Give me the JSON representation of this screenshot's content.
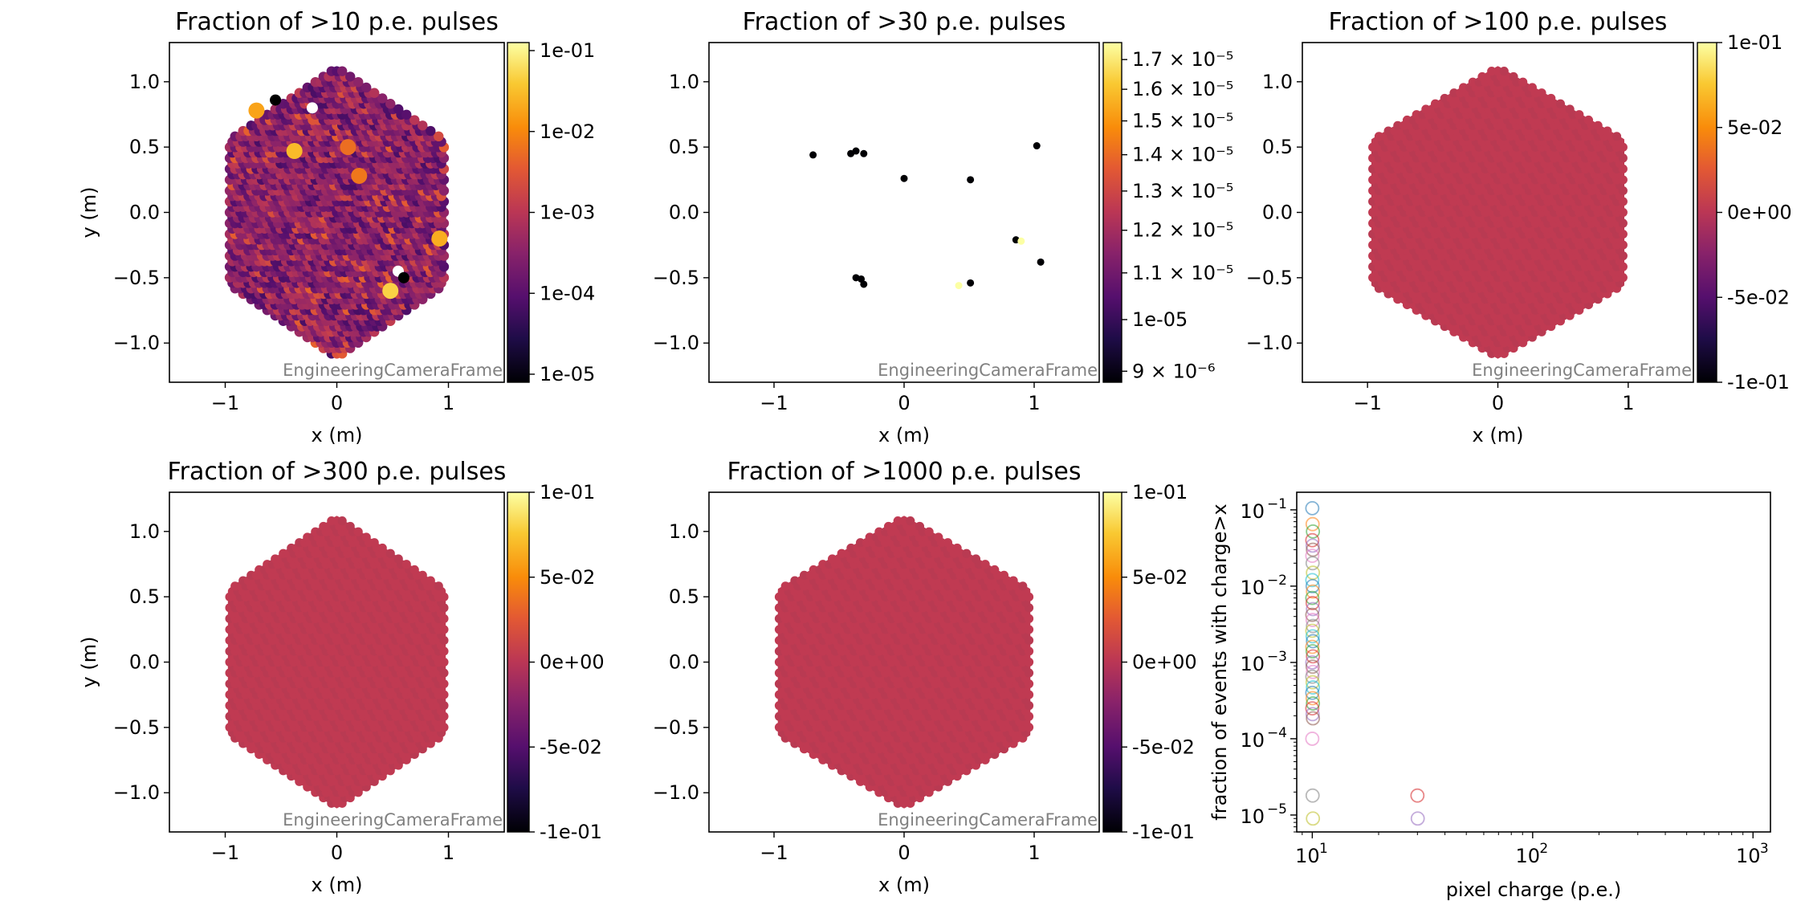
{
  "camera_panels": [
    {
      "id": "p10",
      "title": "Fraction of >10 p.e. pulses",
      "xlabel": "x  (m)",
      "ylabel": "y  (m)",
      "xticks": [
        "−1",
        "0",
        "1"
      ],
      "yticks": [
        "1.0",
        "0.5",
        "0.0",
        "−0.5",
        "−1.0"
      ],
      "watermark": "EngineeringCameraFrame",
      "colorbar": {
        "scale": "log",
        "ticks": [
          "1e-01",
          "1e-02",
          "1e-03",
          "1e-04",
          "1e-05"
        ]
      },
      "mode": "random"
    },
    {
      "id": "p30",
      "title": "Fraction of >30 p.e. pulses",
      "xlabel": "x  (m)",
      "ylabel": "",
      "xticks": [
        "−1",
        "0",
        "1"
      ],
      "yticks": [
        "1.0",
        "0.5",
        "0.0",
        "−0.5",
        "−1.0"
      ],
      "watermark": "EngineeringCameraFrame",
      "colorbar": {
        "scale": "log",
        "ticks": [
          "1.7 × 10⁻⁵",
          "1.6 × 10⁻⁵",
          "1.5 × 10⁻⁵",
          "1.4 × 10⁻⁵",
          "1.3 × 10⁻⁵",
          "1.2 × 10⁻⁵",
          "1.1 × 10⁻⁵",
          "1e-05",
          "9 × 10⁻⁶"
        ]
      },
      "mode": "sparse"
    },
    {
      "id": "p100",
      "title": "Fraction of >100 p.e. pulses",
      "xlabel": "x  (m)",
      "ylabel": "",
      "xticks": [
        "−1",
        "0",
        "1"
      ],
      "yticks": [
        "1.0",
        "0.5",
        "0.0",
        "−0.5",
        "−1.0"
      ],
      "watermark": "EngineeringCameraFrame",
      "colorbar": {
        "scale": "linear",
        "ticks": [
          "1e-01",
          "5e-02",
          "0e+00",
          "-5e-02",
          "-1e-01"
        ]
      },
      "mode": "uniform"
    },
    {
      "id": "p300",
      "title": "Fraction of >300 p.e. pulses",
      "xlabel": "x  (m)",
      "ylabel": "y  (m)",
      "xticks": [
        "−1",
        "0",
        "1"
      ],
      "yticks": [
        "1.0",
        "0.5",
        "0.0",
        "−0.5",
        "−1.0"
      ],
      "watermark": "EngineeringCameraFrame",
      "colorbar": {
        "scale": "linear",
        "ticks": [
          "1e-01",
          "5e-02",
          "0e+00",
          "-5e-02",
          "-1e-01"
        ]
      },
      "mode": "uniform"
    },
    {
      "id": "p1000",
      "title": "Fraction of >1000 p.e. pulses",
      "xlabel": "x  (m)",
      "ylabel": "",
      "xticks": [
        "−1",
        "0",
        "1"
      ],
      "yticks": [
        "1.0",
        "0.5",
        "0.0",
        "−0.5",
        "−1.0"
      ],
      "watermark": "EngineeringCameraFrame",
      "colorbar": {
        "scale": "linear",
        "ticks": [
          "1e-01",
          "5e-02",
          "0e+00",
          "-5e-02",
          "-1e-01"
        ]
      },
      "mode": "uniform"
    }
  ],
  "chart_data": [
    {
      "type": "heatmap",
      "title": "Fraction of >10 p.e. pulses",
      "xlabel": "x  (m)",
      "ylabel": "y  (m)",
      "xlim": [
        -1.5,
        1.5
      ],
      "ylim": [
        -1.3,
        1.3
      ],
      "color_scale": "log",
      "color_range": [
        1e-05,
        0.1
      ],
      "colormap": "inferno"
    },
    {
      "type": "scatter",
      "title": "Fraction of >30 p.e. pulses",
      "xlabel": "x  (m)",
      "xlim": [
        -1.5,
        1.5
      ],
      "ylim": [
        -1.3,
        1.3
      ],
      "color_scale": "log",
      "color_range": [
        9e-06,
        1.75e-05
      ],
      "colormap": "inferno",
      "points": [
        {
          "x": -0.7,
          "y": 0.44,
          "v": 9e-06
        },
        {
          "x": -0.41,
          "y": 0.45,
          "v": 9e-06
        },
        {
          "x": -0.37,
          "y": 0.47,
          "v": 9e-06
        },
        {
          "x": -0.31,
          "y": 0.45,
          "v": 9e-06
        },
        {
          "x": 0.0,
          "y": 0.26,
          "v": 9e-06
        },
        {
          "x": 0.51,
          "y": 0.25,
          "v": 9e-06
        },
        {
          "x": 1.02,
          "y": 0.51,
          "v": 9e-06
        },
        {
          "x": 0.86,
          "y": -0.21,
          "v": 9e-06
        },
        {
          "x": 0.9,
          "y": -0.22,
          "v": 1.75e-05
        },
        {
          "x": 1.05,
          "y": -0.38,
          "v": 9e-06
        },
        {
          "x": -0.37,
          "y": -0.5,
          "v": 9e-06
        },
        {
          "x": -0.33,
          "y": -0.51,
          "v": 9e-06
        },
        {
          "x": -0.31,
          "y": -0.55,
          "v": 9e-06
        },
        {
          "x": 0.42,
          "y": -0.56,
          "v": 1.75e-05
        },
        {
          "x": 0.51,
          "y": -0.54,
          "v": 9e-06
        }
      ]
    },
    {
      "type": "heatmap",
      "title": "Fraction of >100 p.e. pulses",
      "xlabel": "x  (m)",
      "xlim": [
        -1.5,
        1.5
      ],
      "ylim": [
        -1.3,
        1.3
      ],
      "color_scale": "linear",
      "color_range": [
        -0.1,
        0.1
      ],
      "uniform_value": 0.0
    },
    {
      "type": "heatmap",
      "title": "Fraction of >300 p.e. pulses",
      "xlabel": "x  (m)",
      "ylabel": "y  (m)",
      "xlim": [
        -1.5,
        1.5
      ],
      "ylim": [
        -1.3,
        1.3
      ],
      "color_scale": "linear",
      "color_range": [
        -0.1,
        0.1
      ],
      "uniform_value": 0.0
    },
    {
      "type": "heatmap",
      "title": "Fraction of >1000 p.e. pulses",
      "xlabel": "x  (m)",
      "xlim": [
        -1.5,
        1.5
      ],
      "ylim": [
        -1.3,
        1.3
      ],
      "color_scale": "linear",
      "color_range": [
        -0.1,
        0.1
      ],
      "uniform_value": 0.0
    },
    {
      "type": "scatter",
      "title": "",
      "xlabel": "pixel charge (p.e.)",
      "ylabel": "fraction of events with charge>x",
      "xscale": "log",
      "yscale": "log",
      "xlim": [
        8.5,
        1200
      ],
      "ylim": [
        6e-06,
        0.17
      ],
      "xticks": [
        "10¹",
        "10²",
        "10³"
      ],
      "yticks": [
        "10⁻¹",
        "10⁻²",
        "10⁻³",
        "10⁻⁴",
        "10⁻⁵"
      ],
      "marker": "open circle",
      "series": [
        {
          "x": 10,
          "y": [
            0.105,
            0.065,
            0.052,
            0.04,
            0.034,
            0.03,
            0.025,
            0.02,
            0.015,
            0.012,
            0.01,
            0.0085,
            0.007,
            0.006,
            0.005,
            0.0042,
            0.0036,
            0.003,
            0.0026,
            0.0022,
            0.0019,
            0.0016,
            0.0014,
            0.0012,
            0.001,
            0.00088,
            0.00075,
            0.00065,
            0.00055,
            0.00047,
            0.0004,
            0.00034,
            0.00029,
            0.00025,
            0.00021,
            0.000185,
            0.0001,
            1.8e-05,
            9e-06
          ]
        },
        {
          "x": 30,
          "y": [
            1.8e-05,
            9e-06
          ]
        }
      ]
    }
  ],
  "corner_plot": {
    "xlabel": "pixel charge (p.e.)",
    "ylabel": "fraction of events with charge>x",
    "xticks": [
      {
        "label": "10",
        "exp": "1"
      },
      {
        "label": "10",
        "exp": "2"
      },
      {
        "label": "10",
        "exp": "3"
      }
    ],
    "yticks": [
      {
        "label": "10",
        "exp": "−1"
      },
      {
        "label": "10",
        "exp": "−2"
      },
      {
        "label": "10",
        "exp": "−3"
      },
      {
        "label": "10",
        "exp": "−4"
      },
      {
        "label": "10",
        "exp": "−5"
      }
    ]
  },
  "colors": {
    "uniform_fill": "#c03a52",
    "zero_point": "#000004",
    "max_point": "#fcffa4"
  }
}
